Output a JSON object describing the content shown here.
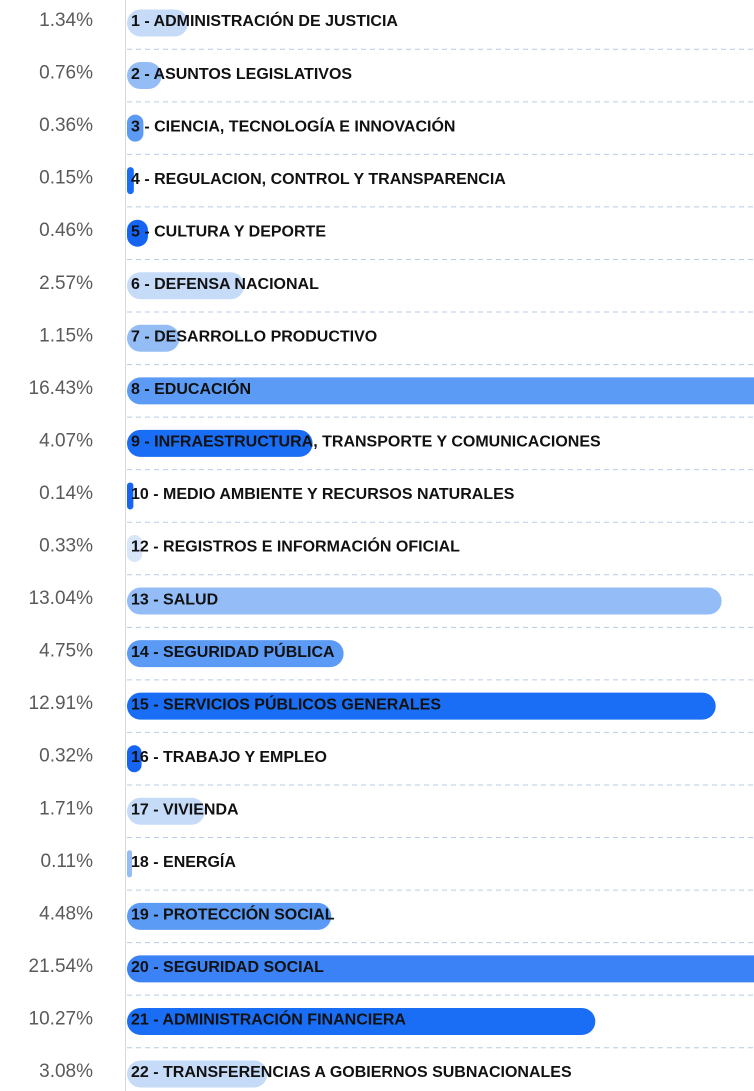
{
  "chart_data": {
    "type": "bar",
    "orientation": "horizontal",
    "categories": [
      "1 - ADMINISTRACIÓN DE JUSTICIA",
      "2 - ASUNTOS LEGISLATIVOS",
      "3 - CIENCIA, TECNOLOGÍA E INNOVACIÓN",
      "4 - REGULACION, CONTROL Y TRANSPARENCIA",
      "5 - CULTURA Y DEPORTE",
      "6 - DEFENSA NACIONAL",
      "7 - DESARROLLO PRODUCTIVO",
      "8 - EDUCACIÓN",
      "9 - INFRAESTRUCTURA, TRANSPORTE Y COMUNICACIONES",
      "10 - MEDIO AMBIENTE Y RECURSOS NATURALES",
      "12 - REGISTROS E INFORMACIÓN OFICIAL",
      "13 - SALUD",
      "14 - SEGURIDAD PÚBLICA",
      "15 - SERVICIOS PÚBLICOS GENERALES",
      "16 - TRABAJO Y EMPLEO",
      "17 - VIVIENDA",
      "18 - ENERGÍA",
      "19 - PROTECCIÓN SOCIAL",
      "20 - SEGURIDAD SOCIAL",
      "21 - ADMINISTRACIÓN FINANCIERA",
      "22 - TRANSFERENCIAS A GOBIERNOS SUBNACIONALES"
    ],
    "values": [
      1.34,
      0.76,
      0.36,
      0.15,
      0.46,
      2.57,
      1.15,
      16.43,
      4.07,
      0.14,
      0.33,
      13.04,
      4.75,
      12.91,
      0.32,
      1.71,
      0.11,
      4.48,
      21.54,
      10.27,
      3.08
    ],
    "value_labels": [
      "1.34%",
      "0.76%",
      "0.36%",
      "0.15%",
      "0.46%",
      "2.57%",
      "1.15%",
      "16.43%",
      "4.07%",
      "0.14%",
      "0.33%",
      "13.04%",
      "4.75%",
      "12.91%",
      "0.32%",
      "1.71%",
      "0.11%",
      "4.48%",
      "21.54%",
      "10.27%",
      "3.08%"
    ],
    "colors": [
      "#c6dbf8",
      "#94bdf5",
      "#5b9bf3",
      "#1a6ef5",
      "#1565f2",
      "#c6dbf8",
      "#94bdf5",
      "#5b9bf5",
      "#1a6ef5",
      "#1565f2",
      "#d9e6fa",
      "#94bdf8",
      "#5b9bf5",
      "#1a6ef5",
      "#1565f2",
      "#c6dbf8",
      "#94bdf5",
      "#5b9bf5",
      "#3b82f6",
      "#1a6ef5",
      "#c6dbf8"
    ],
    "xlim": [
      0,
      13.75
    ]
  }
}
